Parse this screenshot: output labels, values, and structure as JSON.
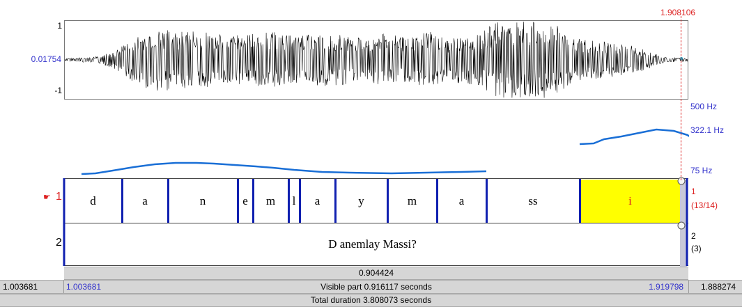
{
  "cursor_time": "1.908106",
  "waveform": {
    "y_top": "1",
    "y_mid": "0.01754",
    "y_bottom": "-1"
  },
  "pitch": {
    "top_label": "500 Hz",
    "cursor_label": "322.1 Hz",
    "bottom_label": "75 Hz"
  },
  "tier1": {
    "number": "1",
    "marker": "☛",
    "right_number": "1",
    "right_count": "(13/14)",
    "segments": [
      "d",
      "a",
      "n",
      "e",
      "m",
      "l",
      "a",
      "y",
      "m",
      "a",
      "ss",
      "i"
    ],
    "selected_index": 11,
    "selected_color": "#ffff00"
  },
  "tier2": {
    "number": "2",
    "text": "D anemlay Massi?",
    "right_number": "2",
    "right_count": "(3)"
  },
  "selection_duration": "0.904424",
  "bottom_bar": {
    "left_outer": "1.003681",
    "left_inner": "1.003681",
    "visible": "Visible part 0.916117 seconds",
    "right_inner": "1.919798",
    "right_outer": "1.888274",
    "total": "Total duration 3.808073 seconds"
  },
  "colors": {
    "pitch": "#1a6fd6",
    "boundary": "#1020b0",
    "cursor": "#dd2222",
    "label_blue": "#3333cc"
  }
}
